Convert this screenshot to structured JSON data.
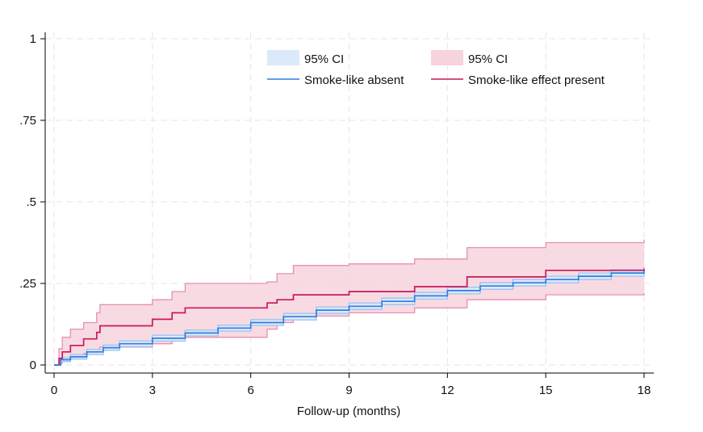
{
  "chart_data": {
    "type": "line",
    "title": "",
    "xlabel": "Follow-up (months)",
    "ylabel": "",
    "xlim": [
      0,
      18
    ],
    "ylim": [
      0,
      1
    ],
    "x_ticks": [
      0,
      3,
      6,
      9,
      12,
      15,
      18
    ],
    "x_tick_labels": [
      "0",
      "3",
      "6",
      "9",
      "12",
      "15",
      "18"
    ],
    "y_ticks": [
      0,
      0.25,
      0.5,
      0.75,
      1
    ],
    "y_tick_labels": [
      "0",
      ".25",
      ".5",
      ".75",
      "1"
    ],
    "grid": true,
    "legend_position": "top-right",
    "series": [
      {
        "name": "Smoke-like absent",
        "color": "#2f7fe0",
        "ci_label": "95% CI",
        "ci_fill": "#dbe9fb",
        "ci_line": "#9cc3f1",
        "x": [
          0,
          0.2,
          0.5,
          1.0,
          1.5,
          2.0,
          3.0,
          4.0,
          5.0,
          6.0,
          7.0,
          8.0,
          9.0,
          10.0,
          11.0,
          12.0,
          13.0,
          14.0,
          15.0,
          16.0,
          17.0,
          18.0
        ],
        "y": [
          0,
          0.016,
          0.025,
          0.04,
          0.053,
          0.065,
          0.082,
          0.098,
          0.113,
          0.13,
          0.148,
          0.168,
          0.18,
          0.195,
          0.212,
          0.228,
          0.242,
          0.252,
          0.262,
          0.272,
          0.282,
          0.29
        ],
        "lower": [
          0,
          0.01,
          0.018,
          0.032,
          0.045,
          0.056,
          0.073,
          0.089,
          0.104,
          0.121,
          0.138,
          0.158,
          0.17,
          0.185,
          0.202,
          0.218,
          0.232,
          0.242,
          0.252,
          0.262,
          0.272,
          0.28
        ],
        "upper": [
          0,
          0.022,
          0.032,
          0.048,
          0.061,
          0.074,
          0.091,
          0.107,
          0.122,
          0.139,
          0.158,
          0.178,
          0.19,
          0.205,
          0.222,
          0.238,
          0.252,
          0.262,
          0.272,
          0.282,
          0.292,
          0.3
        ]
      },
      {
        "name": "Smoke-like effect present",
        "color": "#c8195a",
        "ci_label": "95% CI",
        "ci_fill": "#f7d3de",
        "ci_line": "#e591ad",
        "x": [
          0,
          0.15,
          0.25,
          0.5,
          0.9,
          1.3,
          1.4,
          3.0,
          3.6,
          4.0,
          6.5,
          6.8,
          7.3,
          9.0,
          11.0,
          12.6,
          15.0,
          18.0
        ],
        "y": [
          0,
          0.02,
          0.04,
          0.06,
          0.08,
          0.1,
          0.12,
          0.14,
          0.16,
          0.175,
          0.19,
          0.2,
          0.215,
          0.225,
          0.24,
          0.27,
          0.29,
          0.295
        ],
        "lower": [
          0,
          0.005,
          0.015,
          0.025,
          0.035,
          0.045,
          0.055,
          0.065,
          0.075,
          0.085,
          0.11,
          0.13,
          0.15,
          0.16,
          0.175,
          0.2,
          0.215,
          0.22
        ],
        "upper": [
          0,
          0.05,
          0.085,
          0.11,
          0.13,
          0.16,
          0.185,
          0.2,
          0.225,
          0.25,
          0.255,
          0.28,
          0.305,
          0.31,
          0.325,
          0.36,
          0.375,
          0.385
        ]
      }
    ]
  }
}
